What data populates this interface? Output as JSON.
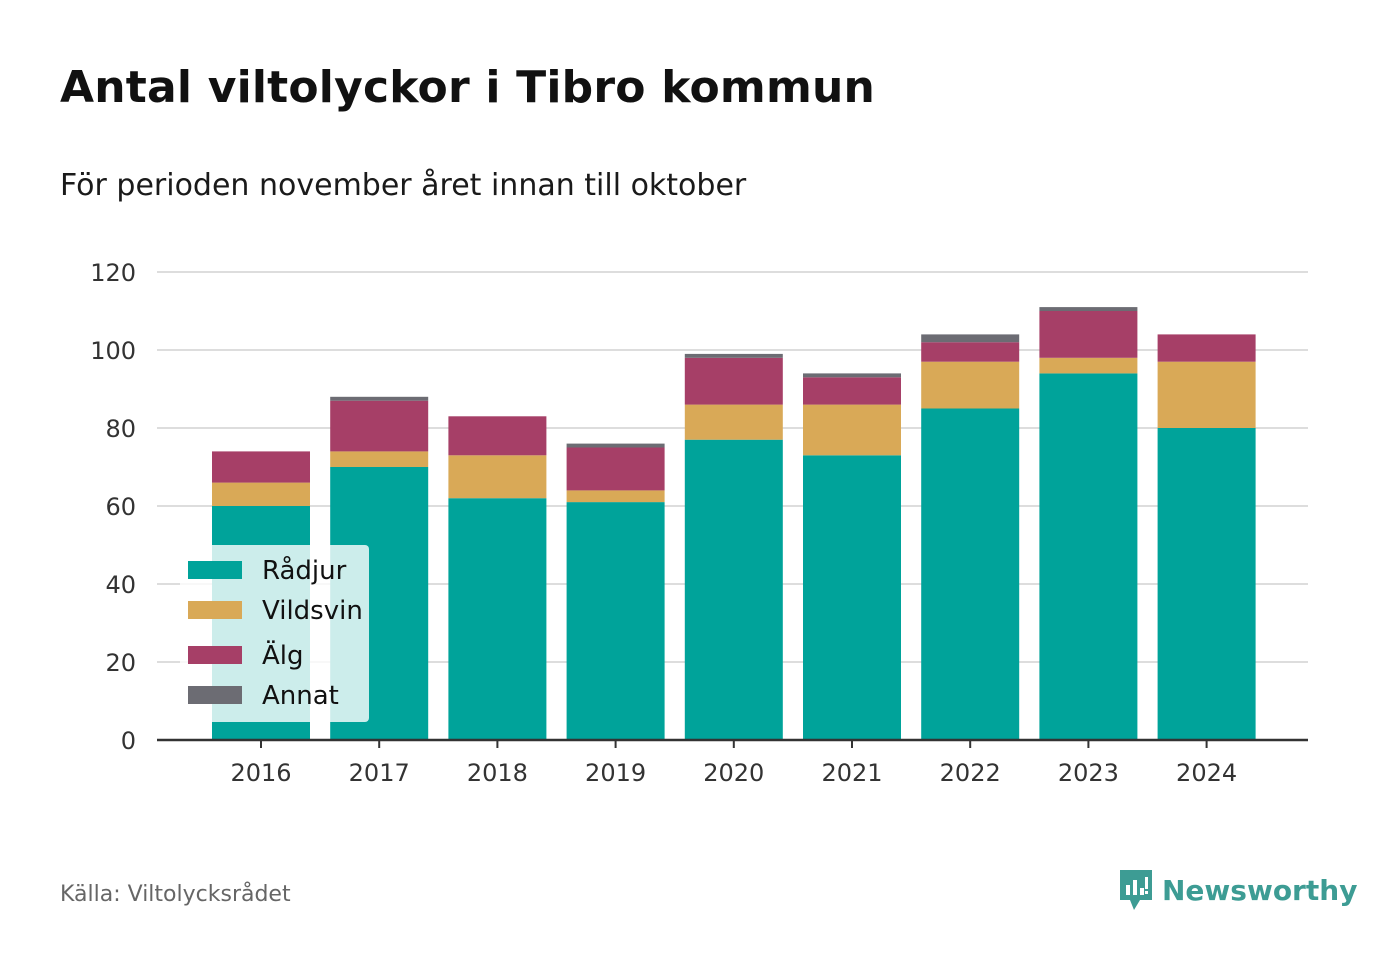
{
  "title": "Antal viltolyckor i Tibro kommun",
  "subtitle": "För perioden november året innan till oktober",
  "source": "Källa: Viltolycksrådet",
  "brand": "Newsworthy",
  "chart_data": {
    "type": "bar",
    "stacked": true,
    "categories": [
      "2016",
      "2017",
      "2018",
      "2019",
      "2020",
      "2021",
      "2022",
      "2023",
      "2024"
    ],
    "series": [
      {
        "name": "Rådjur",
        "color": "#00a39a",
        "values": [
          60,
          70,
          62,
          61,
          77,
          73,
          85,
          94,
          80
        ]
      },
      {
        "name": "Vildsvin",
        "color": "#d9a957",
        "values": [
          6,
          4,
          11,
          3,
          9,
          13,
          12,
          4,
          17
        ]
      },
      {
        "name": "Älg",
        "color": "#a63f67",
        "values": [
          8,
          13,
          10,
          11,
          12,
          7,
          5,
          12,
          7
        ]
      },
      {
        "name": "Annat",
        "color": "#6c6c73",
        "values": [
          0,
          1,
          0,
          1,
          1,
          1,
          2,
          1,
          0
        ]
      }
    ],
    "ylim": [
      0,
      120
    ],
    "yticks": [
      0,
      20,
      40,
      60,
      80,
      100,
      120
    ],
    "grid": true,
    "legend_position": "bottom-left"
  }
}
